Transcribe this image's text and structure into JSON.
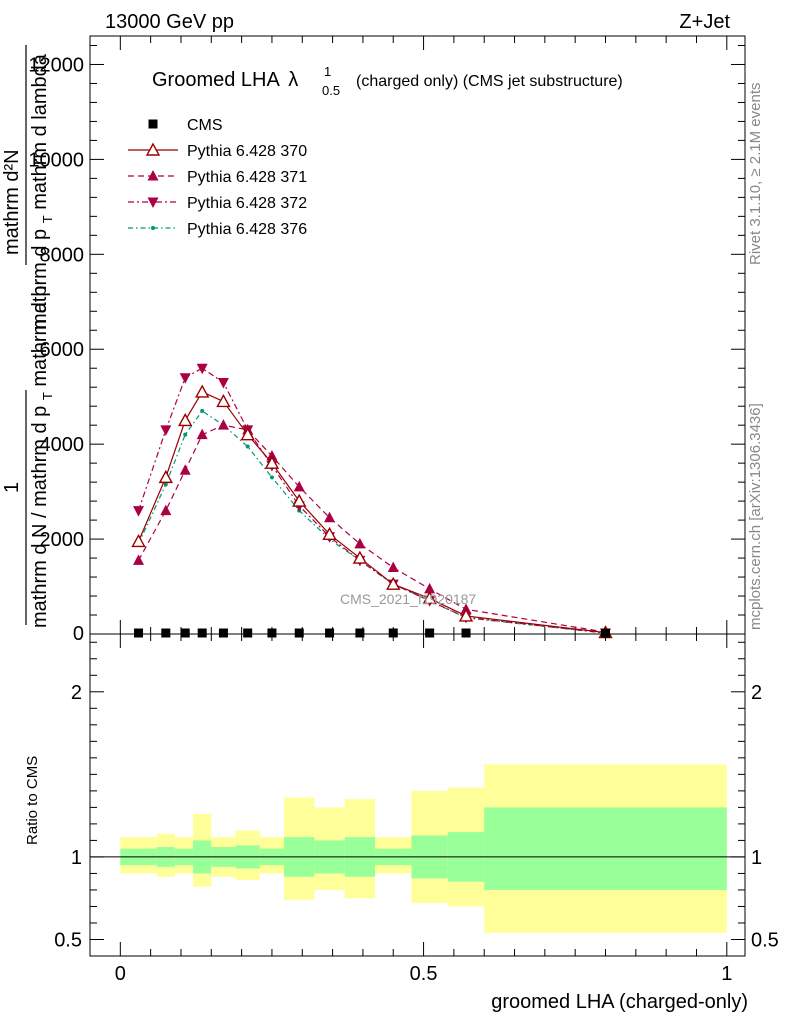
{
  "header": {
    "left": "13000 GeV pp",
    "right": "Z+Jet"
  },
  "title": {
    "main": "Groomed LHA",
    "lambda": "λ",
    "sup": "1",
    "sub": "0.5",
    "rest": "(charged only) (CMS jet substructure)"
  },
  "side_labels": {
    "rivet": "Rivet 3.1.10, ≥ 2.1M events",
    "mcplots": "mcplots.cern.ch [arXiv:1306.3436]"
  },
  "watermark": "CMS_2021_I1920187",
  "ylabel_top": {
    "line1": "mathrm d²N",
    "line2": "mathrm d p",
    "line2_sub": "T",
    "line2b": " mathrm d lambda",
    "one": "1",
    "denom": "mathrm d N / mathrm d p",
    "denom_sub": "T",
    "denom_b": "mathrm d p"
  },
  "ylabel_ratio": "Ratio to CMS",
  "xlabel": "groomed LHA (charged-only)",
  "colors": {
    "cms": "#000000",
    "p370": "#990000",
    "p371": "#aa0044",
    "p372": "#aa0044",
    "p376": "#009977",
    "band_inner": "#99ff99",
    "band_outer": "#ffff99"
  },
  "chart_data": {
    "type": "line",
    "xlim": [
      -0.05,
      1.03
    ],
    "ylim": [
      0,
      12600
    ],
    "x_ticks": [
      "0",
      "0.5",
      "1"
    ],
    "y_ticks": [
      "2000",
      "4000",
      "6000",
      "8000",
      "10000",
      "12000"
    ],
    "ratio_ylim": [
      0.4,
      2.35
    ],
    "ratio_ticks": [
      "0.5",
      "1",
      "2"
    ],
    "legend": [
      "CMS",
      "Pythia 6.428 370",
      "Pythia 6.428 371",
      "Pythia 6.428 372",
      "Pythia 6.428 376"
    ],
    "x": [
      0.03,
      0.075,
      0.107,
      0.135,
      0.17,
      0.21,
      0.25,
      0.295,
      0.345,
      0.395,
      0.45,
      0.51,
      0.57,
      0.8
    ],
    "series": [
      {
        "name": "CMS",
        "values": [
          0,
          0,
          0,
          0,
          0,
          0,
          0,
          0,
          0,
          0,
          0,
          0,
          0,
          0
        ]
      },
      {
        "name": "Pythia 6.428 370",
        "values": [
          1950,
          3300,
          4500,
          5100,
          4900,
          4200,
          3600,
          2800,
          2100,
          1600,
          1050,
          750,
          380,
          30
        ]
      },
      {
        "name": "Pythia 6.428 371",
        "values": [
          1550,
          2600,
          3450,
          4200,
          4400,
          4300,
          3750,
          3100,
          2450,
          1900,
          1400,
          950,
          520,
          40
        ]
      },
      {
        "name": "Pythia 6.428 372",
        "values": [
          2600,
          4300,
          5400,
          5600,
          5300,
          4300,
          3550,
          2700,
          2050,
          1550,
          1050,
          700,
          350,
          20
        ]
      },
      {
        "name": "Pythia 6.428 376",
        "values": [
          1900,
          3150,
          4200,
          4700,
          4400,
          3950,
          3300,
          2600,
          2000,
          1550,
          1050,
          700,
          340,
          20
        ]
      }
    ],
    "ratio_bands": [
      {
        "x0": 0.0,
        "x1": 0.06,
        "inner": [
          0.95,
          1.05
        ],
        "outer": [
          0.9,
          1.12
        ]
      },
      {
        "x0": 0.06,
        "x1": 0.09,
        "inner": [
          0.94,
          1.06
        ],
        "outer": [
          0.88,
          1.14
        ]
      },
      {
        "x0": 0.09,
        "x1": 0.12,
        "inner": [
          0.95,
          1.05
        ],
        "outer": [
          0.9,
          1.12
        ]
      },
      {
        "x0": 0.12,
        "x1": 0.15,
        "inner": [
          0.9,
          1.1
        ],
        "outer": [
          0.82,
          1.26
        ]
      },
      {
        "x0": 0.15,
        "x1": 0.19,
        "inner": [
          0.94,
          1.06
        ],
        "outer": [
          0.88,
          1.12
        ]
      },
      {
        "x0": 0.19,
        "x1": 0.23,
        "inner": [
          0.93,
          1.07
        ],
        "outer": [
          0.86,
          1.16
        ]
      },
      {
        "x0": 0.23,
        "x1": 0.27,
        "inner": [
          0.95,
          1.05
        ],
        "outer": [
          0.9,
          1.12
        ]
      },
      {
        "x0": 0.27,
        "x1": 0.32,
        "inner": [
          0.88,
          1.12
        ],
        "outer": [
          0.74,
          1.36
        ]
      },
      {
        "x0": 0.32,
        "x1": 0.37,
        "inner": [
          0.9,
          1.1
        ],
        "outer": [
          0.8,
          1.3
        ]
      },
      {
        "x0": 0.37,
        "x1": 0.42,
        "inner": [
          0.88,
          1.12
        ],
        "outer": [
          0.75,
          1.35
        ]
      },
      {
        "x0": 0.42,
        "x1": 0.48,
        "inner": [
          0.95,
          1.05
        ],
        "outer": [
          0.9,
          1.12
        ]
      },
      {
        "x0": 0.48,
        "x1": 0.54,
        "inner": [
          0.87,
          1.13
        ],
        "outer": [
          0.72,
          1.4
        ]
      },
      {
        "x0": 0.54,
        "x1": 0.6,
        "inner": [
          0.85,
          1.15
        ],
        "outer": [
          0.7,
          1.42
        ]
      },
      {
        "x0": 0.6,
        "x1": 1.0,
        "inner": [
          0.8,
          1.3
        ],
        "outer": [
          0.54,
          1.56
        ]
      }
    ]
  }
}
